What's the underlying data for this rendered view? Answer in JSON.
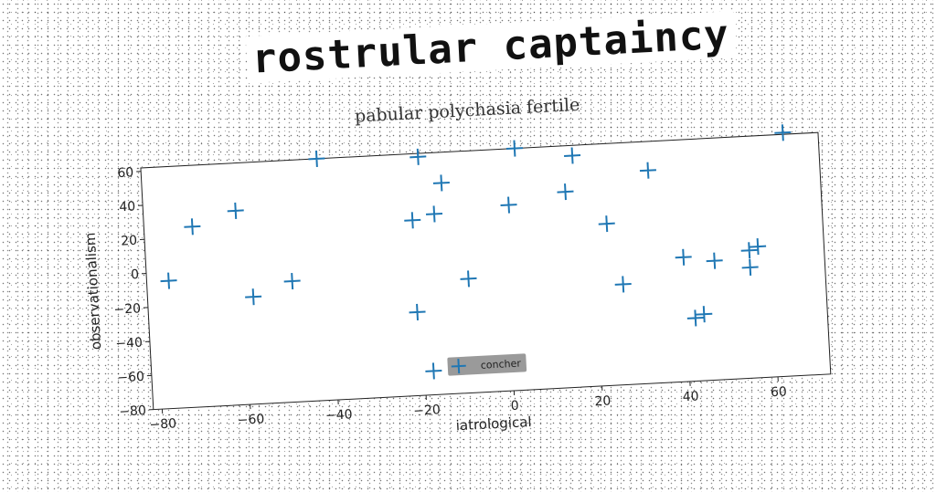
{
  "title": "rostrular captaincy",
  "chart_data": {
    "type": "scatter",
    "title": "pabular polychasia fertile",
    "xlabel": "iatrological",
    "ylabel": "observationalism",
    "xlim": [
      -82,
      72
    ],
    "ylim": [
      -80,
      62
    ],
    "xticks": [
      -80,
      -60,
      -40,
      -20,
      0,
      20,
      40,
      60
    ],
    "yticks": [
      -80,
      -60,
      -40,
      -20,
      0,
      20,
      40,
      60
    ],
    "grid": false,
    "legend_position": "lower-center",
    "marker": "plus",
    "color": "#1f77b4",
    "series": [
      {
        "name": "concher",
        "points": [
          [
            -42,
            62
          ],
          [
            -19,
            60
          ],
          [
            3,
            62
          ],
          [
            16,
            56
          ],
          [
            -14,
            44
          ],
          [
            33,
            45
          ],
          [
            14,
            35
          ],
          [
            -61,
            34
          ],
          [
            -71,
            26
          ],
          [
            -16,
            26
          ],
          [
            -21,
            23
          ],
          [
            1,
            29
          ],
          [
            23,
            15
          ],
          [
            -77,
            -5
          ],
          [
            -49,
            -9
          ],
          [
            -58,
            -17
          ],
          [
            -9,
            -13
          ],
          [
            26,
            -21
          ],
          [
            40,
            -7
          ],
          [
            47,
            -10
          ],
          [
            55,
            -5
          ],
          [
            57,
            -3
          ],
          [
            55,
            -15
          ],
          [
            64,
            63
          ],
          [
            -21,
            -31
          ],
          [
            42,
            -43
          ],
          [
            44,
            -41
          ],
          [
            -18,
            -66
          ]
        ]
      }
    ]
  }
}
